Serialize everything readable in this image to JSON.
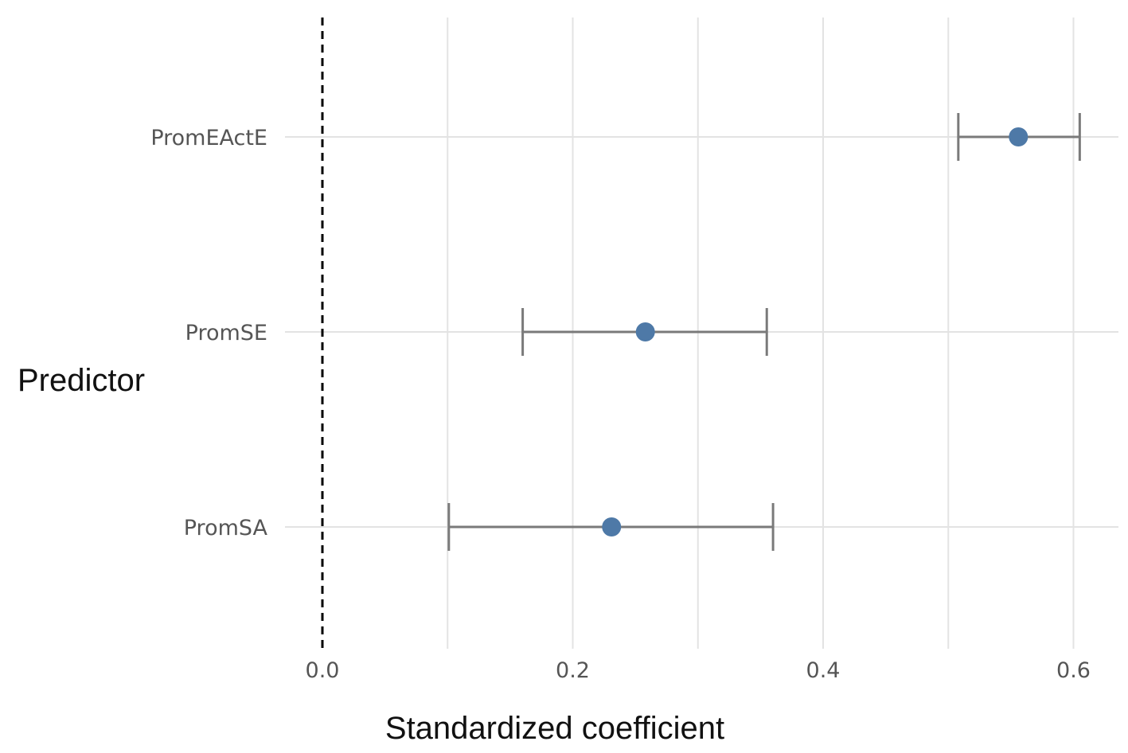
{
  "chart_data": {
    "type": "scatter",
    "title": "",
    "xlabel": "Standardized coefficient",
    "ylabel": "Predictor",
    "xlim": [
      0.0,
      0.63
    ],
    "xticks": [
      0.0,
      0.2,
      0.4,
      0.6
    ],
    "xtick_labels": [
      "0.0",
      "0.2",
      "0.4",
      "0.6"
    ],
    "grid": true,
    "reference_line": {
      "x": 0.0,
      "style": "dashed"
    },
    "categories": [
      "PromEActE",
      "PromSE",
      "PromSA"
    ],
    "series": [
      {
        "points": [
          {
            "category": "PromEActE",
            "estimate": 0.556,
            "lower": 0.508,
            "upper": 0.605
          },
          {
            "category": "PromSE",
            "estimate": 0.258,
            "lower": 0.16,
            "upper": 0.355
          },
          {
            "category": "PromSA",
            "estimate": 0.231,
            "lower": 0.101,
            "upper": 0.36
          }
        ]
      }
    ],
    "colors": {
      "point": "#4e79a7",
      "errorbar": "#7a7a7a",
      "grid": "#e3e3e3",
      "reference": "#000000"
    }
  }
}
